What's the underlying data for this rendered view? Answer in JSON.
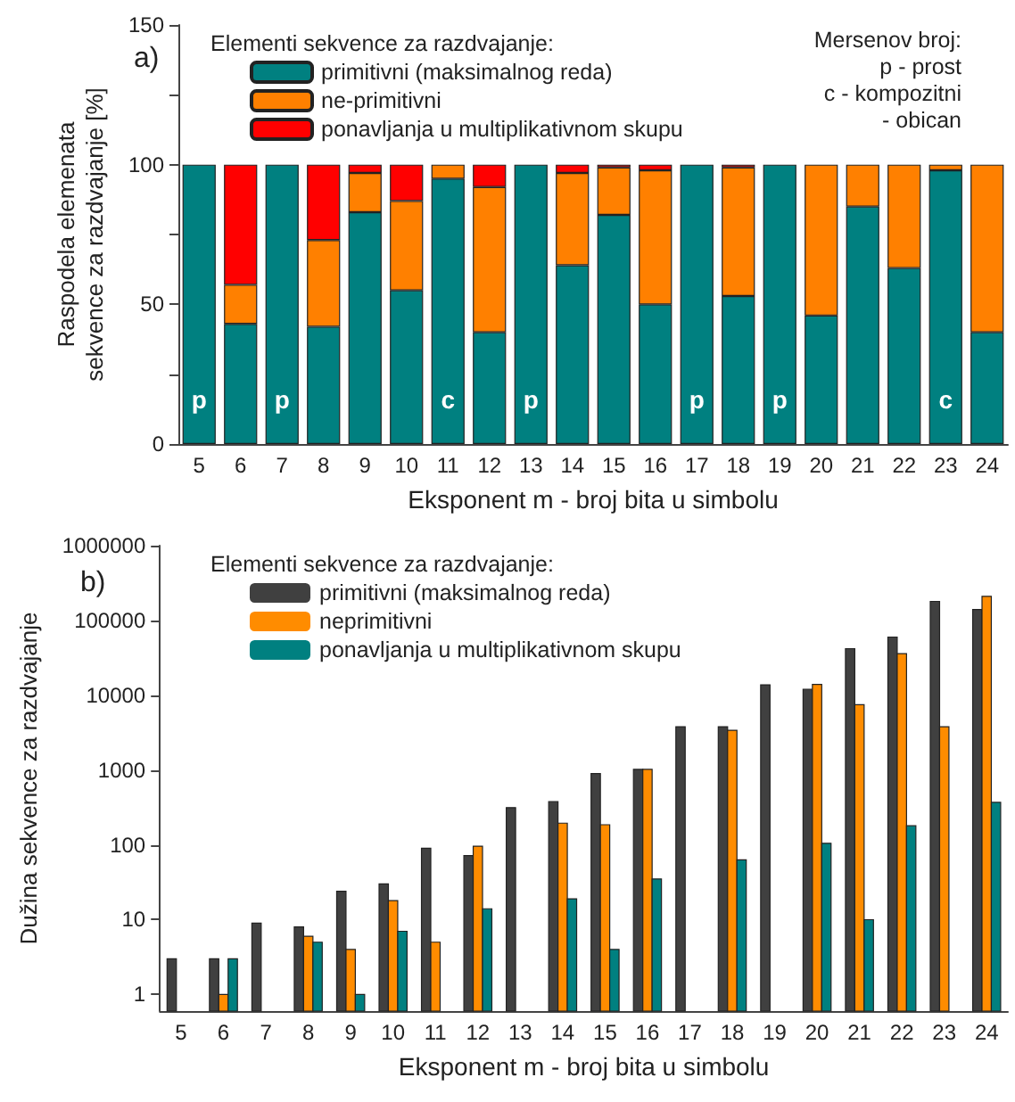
{
  "chart_data": [
    {
      "type": "bar",
      "title": "a)",
      "xlabel": "Eksponent m - broj bita u simbolu",
      "ylabel": "Raspodela elemenata\nsekvence za razdvajanje [%]",
      "legend_title": "Elementi sekvence za razdvajanje:",
      "legend": "top left",
      "stacked": true,
      "grid": false,
      "categories": [
        "5",
        "6",
        "7",
        "8",
        "9",
        "10",
        "11",
        "12",
        "13",
        "14",
        "15",
        "16",
        "17",
        "18",
        "19",
        "20",
        "21",
        "22",
        "23",
        "24"
      ],
      "series": [
        {
          "name": "primitivni (maksimalnog reda)",
          "color": "#008080",
          "values": [
            100,
            43,
            100,
            42,
            83,
            55,
            95,
            40,
            100,
            64,
            82,
            50,
            100,
            53,
            100,
            46,
            85,
            63,
            98,
            40
          ],
          "value_labels": [
            "p",
            null,
            "p",
            null,
            null,
            null,
            "c",
            null,
            "p",
            null,
            null,
            null,
            "p",
            null,
            "p",
            null,
            null,
            null,
            "c",
            null
          ]
        },
        {
          "name": "ne-primitivni",
          "color": "#ff8000",
          "values": [
            null,
            14,
            null,
            31,
            14,
            32,
            5,
            52,
            null,
            33,
            17,
            48,
            null,
            46,
            null,
            54,
            15,
            37,
            2,
            60
          ]
        },
        {
          "name": "ponavljanja u multiplikativnom skupu",
          "color": "#ff0000",
          "values": [
            null,
            43,
            null,
            27,
            3,
            13,
            null,
            8,
            null,
            3,
            1,
            2,
            null,
            1,
            null,
            null,
            null,
            null,
            null,
            null
          ]
        }
      ],
      "ylim": [
        0,
        150
      ],
      "yticks": [
        0,
        {
          "value": 25,
          "label": null
        },
        50,
        {
          "value": 75,
          "label": null
        },
        100,
        {
          "value": 125,
          "label": null
        },
        150
      ],
      "annotations": [
        "Mersenov broj:",
        "p - prost",
        "c - kompozitni",
        "  - obican"
      ]
    },
    {
      "type": "bar",
      "title": "b)",
      "xlabel": "Eksponent m - broj bita u simbolu",
      "ylabel": "Dužina sekvence za razdvajanje",
      "legend_title": "Elementi sekvence za razdvajanje:",
      "legend": "top left",
      "log": "y",
      "grid": false,
      "categories": [
        "5",
        "6",
        "7",
        "8",
        "9",
        "10",
        "11",
        "12",
        "13",
        "14",
        "15",
        "16",
        "17",
        "18",
        "19",
        "20",
        "21",
        "22",
        "23",
        "24"
      ],
      "series": [
        {
          "name": "primitivni (maksimalnog reda)",
          "color": "#404040",
          "values": [
            3,
            3,
            9,
            8,
            24,
            30,
            90,
            72,
            315,
            378,
            900,
            1020,
            3800,
            3800,
            13800,
            12000,
            42000,
            60000,
            180000,
            140000
          ]
        },
        {
          "name": "neprimitivni",
          "color": "#ff8c00",
          "values": [
            null,
            1,
            null,
            6,
            4,
            18,
            5,
            96,
            null,
            195,
            186,
            1020,
            null,
            3400,
            null,
            14000,
            7500,
            36000,
            3800,
            210000
          ]
        },
        {
          "name": "ponavljanja u multiplikativnom skupu",
          "color": "#008080",
          "values": [
            null,
            3,
            null,
            5,
            1,
            7,
            null,
            14,
            null,
            19,
            4,
            35,
            null,
            63,
            null,
            105,
            10,
            180,
            null,
            370
          ]
        }
      ],
      "ylim": [
        0.6,
        1000000
      ],
      "yticks": [
        1,
        10,
        100,
        1000,
        10000,
        100000,
        1000000
      ]
    }
  ]
}
